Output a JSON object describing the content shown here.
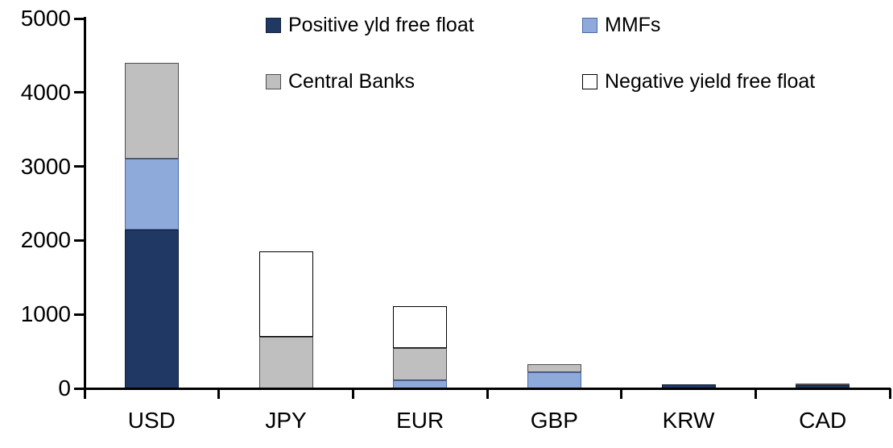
{
  "chart_data": {
    "type": "bar",
    "subtype": "stacked",
    "title": "",
    "xlabel": "",
    "ylabel": "",
    "categories": [
      "USD",
      "JPY",
      "EUR",
      "GBP",
      "KRW",
      "CAD"
    ],
    "series": [
      {
        "name": "Positive yld free float",
        "color": "#1F3864",
        "border_color": "#11203B",
        "values": [
          2150,
          0,
          0,
          0,
          50,
          40
        ]
      },
      {
        "name": "MMFs",
        "color": "#8EAADB",
        "border_color": "#4A69A5",
        "values": [
          950,
          0,
          110,
          220,
          0,
          0
        ]
      },
      {
        "name": "Central Banks",
        "color": "#BFBFBF",
        "border_color": "#4D4D4D",
        "values": [
          1300,
          700,
          440,
          110,
          0,
          20
        ]
      },
      {
        "name": "Negative yield free float",
        "color": "#FFFFFF",
        "border_color": "#000000",
        "values": [
          0,
          1150,
          560,
          0,
          0,
          0
        ]
      }
    ],
    "stack_order": "first series at bottom",
    "totals": [
      4400,
      1850,
      1110,
      330,
      50,
      60
    ],
    "ylim": [
      0,
      5000
    ],
    "ytick_interval": 1000,
    "yticks": [
      "0",
      "1000",
      "2000",
      "3000",
      "4000",
      "5000"
    ],
    "grid": false,
    "legend_position": "top, two columns by two rows",
    "axis_color": "#000000",
    "background_color": "#FFFFFF"
  }
}
